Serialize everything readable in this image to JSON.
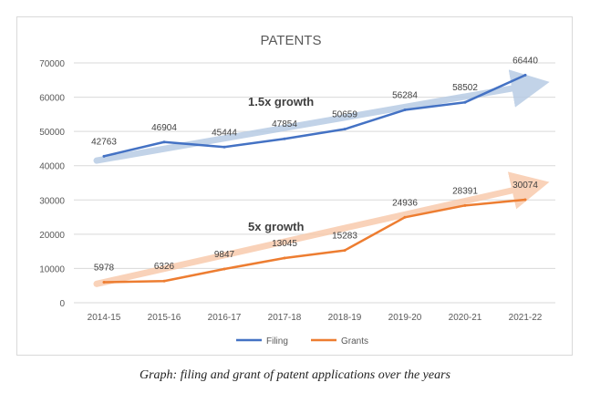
{
  "caption": "Graph: filing and grant of patent applications over the years",
  "chart_data": {
    "type": "line",
    "title": "PATENTS",
    "categories": [
      "2014-15",
      "2015-16",
      "2016-17",
      "2017-18",
      "2018-19",
      "2019-20",
      "2020-21",
      "2021-22"
    ],
    "ylim": [
      0,
      70000
    ],
    "yticks": [
      0,
      10000,
      20000,
      30000,
      40000,
      50000,
      60000,
      70000
    ],
    "grid": true,
    "legend_position": "bottom",
    "series": [
      {
        "name": "Filing",
        "color": "#4472c4",
        "values": [
          42763,
          46904,
          45444,
          47854,
          50659,
          56284,
          58502,
          66440
        ]
      },
      {
        "name": "Grants",
        "color": "#ed7d31",
        "values": [
          5978,
          6326,
          9847,
          13045,
          15283,
          24936,
          28391,
          30074
        ]
      }
    ],
    "annotations": [
      {
        "text": "1.5x growth",
        "series": "Filing",
        "from": [
          "2014-15",
          41500
        ],
        "to": [
          "2021-22",
          63500
        ],
        "arrow_color": "#b8cce4"
      },
      {
        "text": "5x growth",
        "series": "Grants",
        "from": [
          "2014-15",
          5500
        ],
        "to": [
          "2021-22",
          34000
        ],
        "arrow_color": "#f8cbad"
      }
    ]
  }
}
